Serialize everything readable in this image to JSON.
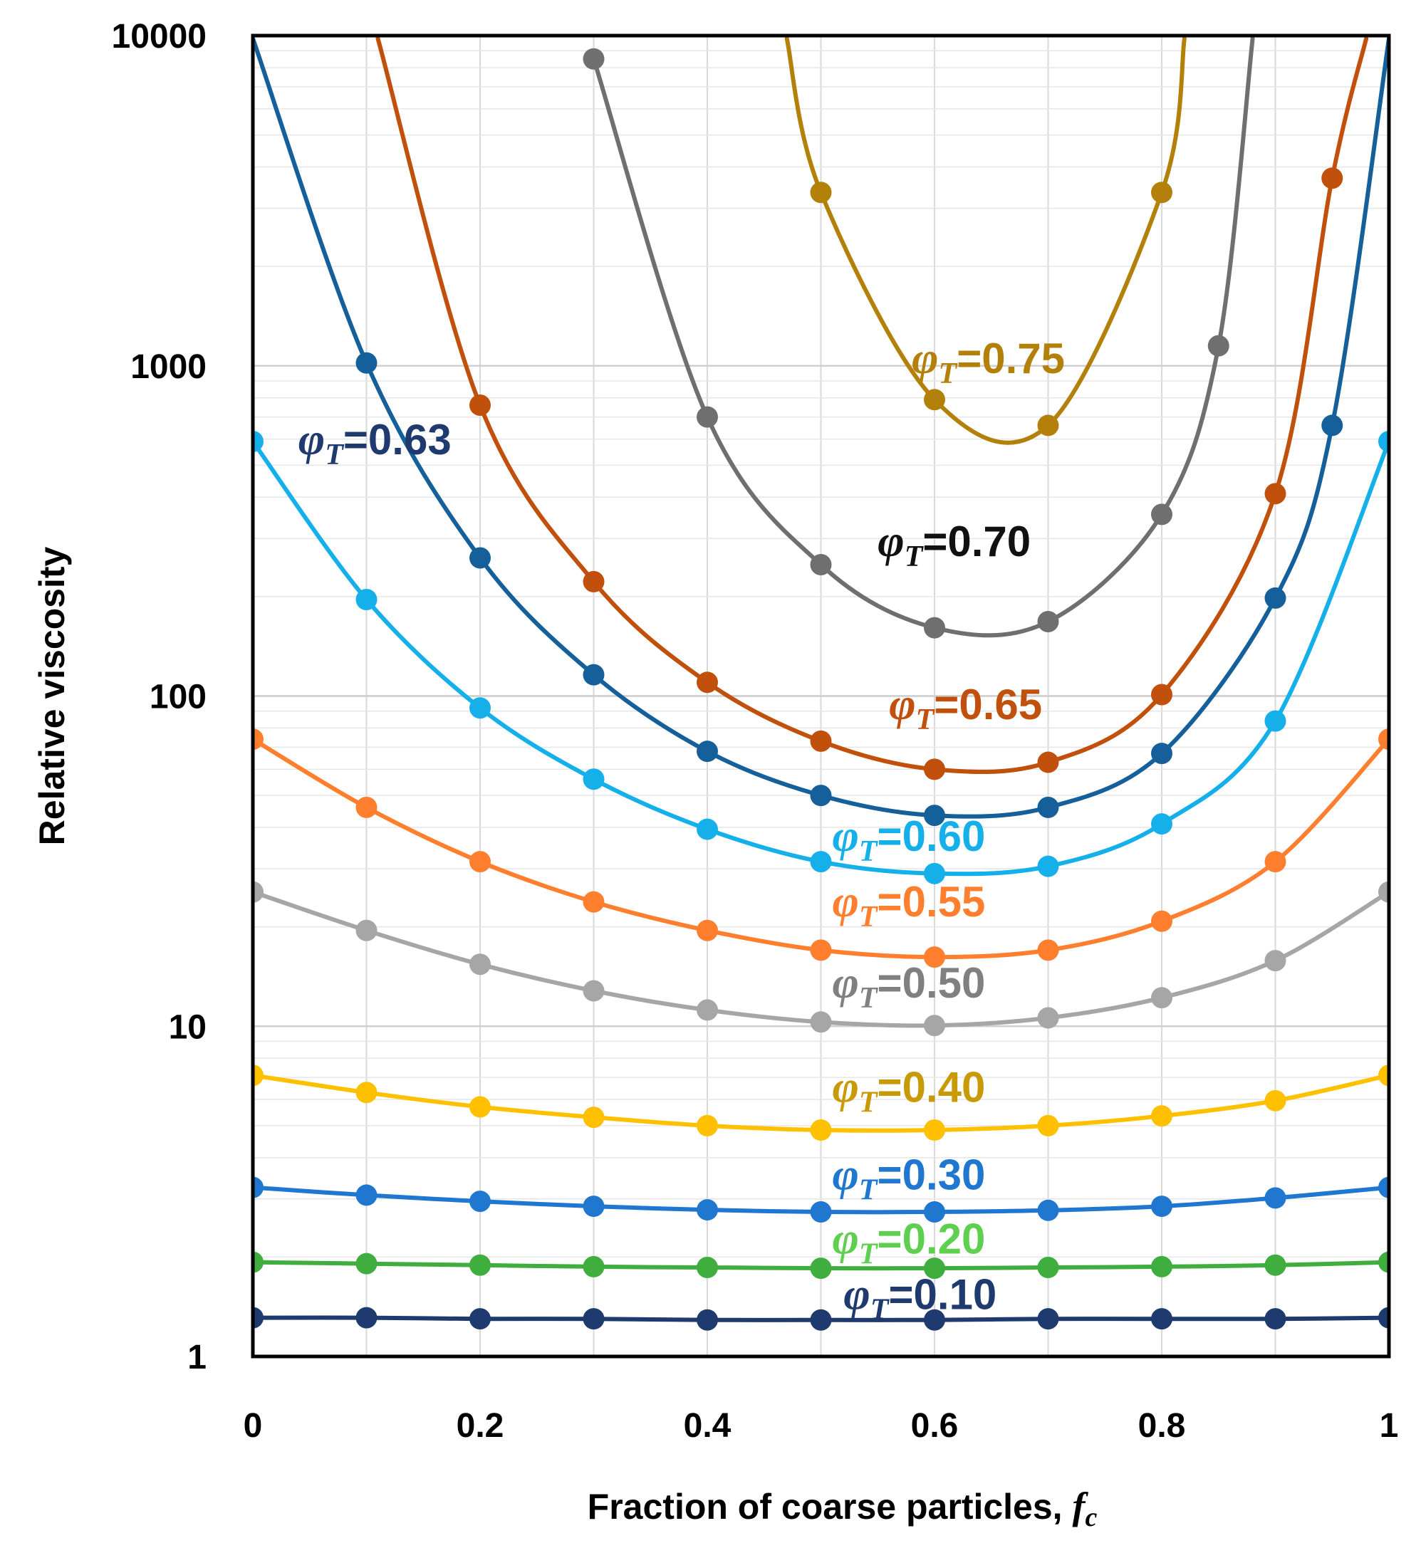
{
  "chart_data": {
    "type": "line",
    "title": "",
    "xlabel": "Fraction of coarse particles, ",
    "xlabel_symbol": "f",
    "xlabel_subscript": "c",
    "ylabel": "Relative viscosity",
    "xlim": [
      0,
      1
    ],
    "ylim": [
      1,
      10000
    ],
    "yscale": "log",
    "grid": true,
    "x_ticks": [
      "0",
      "0.2",
      "0.4",
      "0.6",
      "0.8",
      "1"
    ],
    "y_ticks": [
      "1",
      "10",
      "100",
      "1000",
      "10000"
    ],
    "label_symbol": "φ",
    "label_subscript": "T",
    "series": [
      {
        "name": "0.10",
        "color": "#1f3a6e",
        "x": [
          0,
          0.1,
          0.2,
          0.3,
          0.4,
          0.5,
          0.6,
          0.7,
          0.8,
          0.9,
          1
        ],
        "values": [
          1.31,
          1.31,
          1.3,
          1.3,
          1.29,
          1.29,
          1.29,
          1.3,
          1.3,
          1.3,
          1.31
        ]
      },
      {
        "name": "0.20",
        "color": "#3fae3f",
        "x": [
          0,
          0.1,
          0.2,
          0.3,
          0.4,
          0.5,
          0.6,
          0.7,
          0.8,
          0.9,
          1
        ],
        "values": [
          1.93,
          1.91,
          1.89,
          1.87,
          1.86,
          1.85,
          1.85,
          1.86,
          1.87,
          1.89,
          1.93
        ]
      },
      {
        "name": "0.30",
        "color": "#1f77d0",
        "x": [
          0,
          0.1,
          0.2,
          0.3,
          0.4,
          0.5,
          0.6,
          0.7,
          0.8,
          0.9,
          1
        ],
        "values": [
          3.25,
          3.08,
          2.95,
          2.85,
          2.78,
          2.74,
          2.74,
          2.77,
          2.85,
          3.02,
          3.25
        ]
      },
      {
        "name": "0.40",
        "color": "#ffc000",
        "x": [
          0,
          0.1,
          0.2,
          0.3,
          0.4,
          0.5,
          0.6,
          0.7,
          0.8,
          0.9,
          1
        ],
        "values": [
          7.1,
          6.3,
          5.7,
          5.3,
          5.0,
          4.85,
          4.85,
          5.0,
          5.35,
          5.95,
          7.1
        ]
      },
      {
        "name": "0.50",
        "color": "#a6a6a6",
        "x": [
          0,
          0.1,
          0.2,
          0.3,
          0.4,
          0.5,
          0.6,
          0.7,
          0.8,
          0.9,
          1
        ],
        "values": [
          25.5,
          19.5,
          15.4,
          12.8,
          11.2,
          10.3,
          10.05,
          10.6,
          12.2,
          15.8,
          25.5
        ]
      },
      {
        "name": "0.55",
        "color": "#ff7f2f",
        "x": [
          0,
          0.1,
          0.2,
          0.3,
          0.4,
          0.5,
          0.6,
          0.7,
          0.8,
          0.9,
          1
        ],
        "values": [
          74,
          46,
          31.5,
          23.8,
          19.5,
          17.0,
          16.2,
          17.0,
          20.8,
          31.5,
          74
        ]
      },
      {
        "name": "0.60",
        "color": "#15b0ea",
        "x": [
          0,
          0.1,
          0.2,
          0.3,
          0.4,
          0.5,
          0.6,
          0.7,
          0.8,
          0.9,
          1
        ],
        "values": [
          590,
          196,
          92,
          56,
          39.5,
          31.5,
          29.0,
          30.5,
          41,
          84,
          590
        ]
      },
      {
        "name": "0.63",
        "color": "#15609a",
        "x": [
          0,
          0.1,
          0.2,
          0.3,
          0.4,
          0.5,
          0.6,
          0.7,
          0.8,
          0.9,
          0.95,
          1
        ],
        "values": [
          9800,
          1020,
          262,
          116,
          68,
          50,
          43.5,
          46,
          67,
          198,
          660,
          9800
        ]
      },
      {
        "name": "0.65",
        "color": "#c0500c",
        "x": [
          0.11,
          0.2,
          0.3,
          0.4,
          0.5,
          0.6,
          0.7,
          0.8,
          0.9,
          0.95,
          0.98
        ],
        "values": [
          9800,
          760,
          222,
          110,
          73,
          60,
          63,
          101,
          410,
          3700,
          9800
        ]
      },
      {
        "name": "0.70",
        "color": "#6f6f6f",
        "x": [
          0.3,
          0.4,
          0.5,
          0.6,
          0.7,
          0.8,
          0.85,
          0.88
        ],
        "values": [
          8500,
          700,
          250,
          161,
          168,
          355,
          1150,
          9800
        ]
      },
      {
        "name": "0.75",
        "color": "#b3800a",
        "x": [
          0.47,
          0.5,
          0.6,
          0.7,
          0.8,
          0.82
        ],
        "values": [
          9800,
          3350,
          790,
          660,
          3350,
          9800
        ]
      }
    ],
    "marker_index": {
      "0.63": [
        1,
        2,
        3,
        4,
        5,
        6,
        7,
        8,
        9,
        10
      ],
      "0.65": [
        1,
        2,
        3,
        4,
        5,
        6,
        7,
        8,
        9
      ],
      "0.70": [
        0,
        1,
        2,
        3,
        4,
        5,
        6
      ],
      "0.75": [
        1,
        2,
        3,
        4
      ]
    },
    "annotations": [
      {
        "series": "0.75",
        "text": "=0.75",
        "x": 0.58,
        "y": 950,
        "color": "#b3800a"
      },
      {
        "series": "0.63",
        "text": "=0.63",
        "x": 0.04,
        "y": 540,
        "color": "#1f3a6e"
      },
      {
        "series": "0.70",
        "text": "=0.70",
        "x": 0.55,
        "y": 265,
        "color": "#111111"
      },
      {
        "series": "0.65",
        "text": "=0.65",
        "x": 0.56,
        "y": 85,
        "color": "#c0500c"
      },
      {
        "series": "0.60",
        "text": "=0.60",
        "x": 0.51,
        "y": 34,
        "color": "#15b0ea"
      },
      {
        "series": "0.55",
        "text": "=0.55",
        "x": 0.51,
        "y": 21.5,
        "color": "#ff7f2f"
      },
      {
        "series": "0.50",
        "text": "=0.50",
        "x": 0.51,
        "y": 12.2,
        "color": "#808080"
      },
      {
        "series": "0.40",
        "text": "=0.40",
        "x": 0.51,
        "y": 5.9,
        "color": "#c79a06"
      },
      {
        "series": "0.30",
        "text": "=0.30",
        "x": 0.51,
        "y": 3.2,
        "color": "#1f77d0"
      },
      {
        "series": "0.20",
        "text": "=0.20",
        "x": 0.51,
        "y": 2.05,
        "color": "#5fcf4f"
      },
      {
        "series": "0.10",
        "text": "=0.10",
        "x": 0.52,
        "y": 1.39,
        "color": "#1f3a6e"
      }
    ]
  }
}
